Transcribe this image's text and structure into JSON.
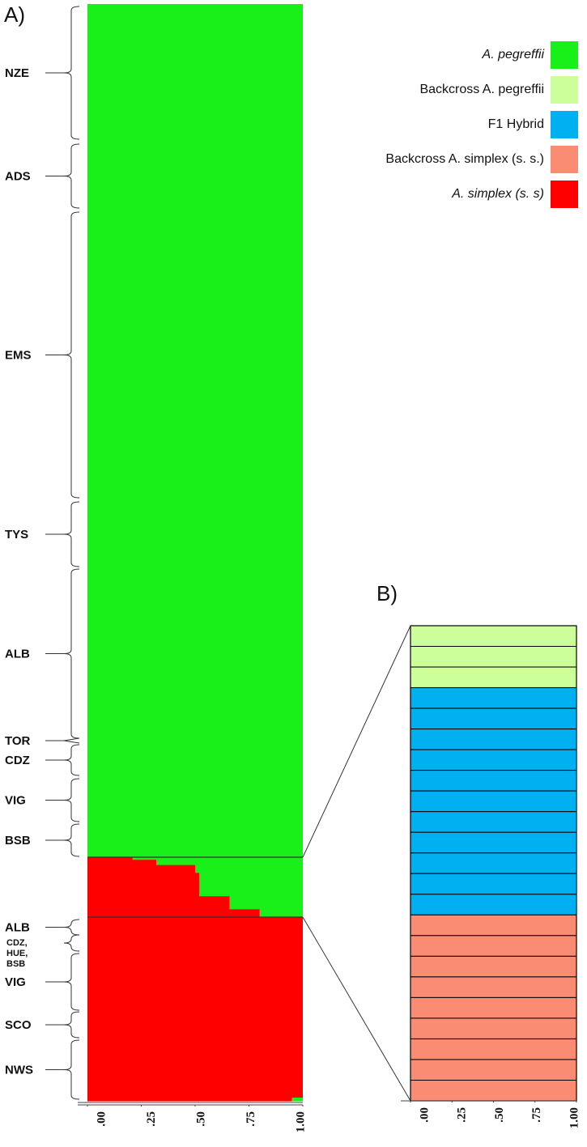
{
  "chart_data": [
    {
      "type": "bar",
      "orientation": "horizontal",
      "stacked": true,
      "panel": "A)",
      "categories": [
        null,
        null,
        null,
        null,
        null,
        null,
        null,
        null,
        null,
        null,
        null,
        null,
        null,
        null,
        null,
        null,
        null,
        null,
        null,
        null,
        null,
        null,
        null,
        null,
        null,
        null
      ],
      "series": [
        {
          "color": "#ff0000",
          "values": [
            0,
            0.21,
            0.32,
            0.32,
            0.5,
            0.5,
            0.5,
            0.52,
            0.52,
            0.52,
            0.52,
            0.52,
            0.52,
            0.52,
            0.52,
            0.52,
            0.66,
            0.66,
            0.66,
            0.66,
            0.66,
            0.8,
            0.8,
            0.8,
            1,
            0.95
          ]
        },
        {
          "color": "#19f01a",
          "values": [
            1,
            0.79,
            0.68,
            0.68,
            0.5,
            0.5,
            0.5,
            0.48,
            0.48,
            0.48,
            0.48,
            0.48,
            0.48,
            0.48,
            0.48,
            0.48,
            0.34,
            0.34,
            0.34,
            0.34,
            0.34,
            0.2,
            0.2,
            0.2,
            0,
            0.05
          ]
        }
      ],
      "groups": [
        "NZE",
        "ADS",
        "EMS",
        "TYS",
        "ALB",
        "TOR",
        "CDZ",
        "VIG",
        "BSB",
        "ALB",
        "CDZ, HUE, BSB",
        "VIG",
        "SCO",
        "NWS"
      ],
      "xlim": [
        0,
        1
      ],
      "xticks": [
        {
          "value": 0,
          "label": ".00"
        },
        {
          "value": 0.25,
          "label": ".25"
        },
        {
          "value": 0.5,
          "label": ".50"
        },
        {
          "value": 0.75,
          "label": ".75"
        },
        {
          "value": 1,
          "label": "1.00"
        }
      ]
    },
    {
      "type": "bar",
      "orientation": "horizontal",
      "stacked": true,
      "panel": "B)",
      "categories": [
        null,
        null,
        null,
        null,
        null,
        null,
        null,
        null,
        null,
        null,
        null,
        null,
        null,
        null,
        null,
        null,
        null,
        null,
        null,
        null,
        null,
        null,
        null
      ],
      "series": [
        {
          "name": "A. pegreffii",
          "color": "#19f01a",
          "values": [
            0,
            0,
            0,
            0,
            0,
            0,
            0,
            0,
            0,
            0,
            0,
            0,
            0,
            0,
            0,
            0,
            0,
            0,
            0,
            0,
            0,
            0,
            0
          ]
        },
        {
          "name": "Backcross A. pegreffii",
          "color": "#ccff99",
          "values": [
            1,
            1,
            1,
            0,
            0,
            0,
            0,
            0,
            0,
            0,
            0,
            0,
            0,
            0,
            0,
            0,
            0,
            0,
            0,
            0,
            0,
            0,
            0
          ]
        },
        {
          "name": "F1 Hybrid",
          "color": "#00b0f0",
          "values": [
            0,
            0,
            0,
            1,
            1,
            1,
            1,
            1,
            1,
            1,
            1,
            1,
            1,
            1,
            0,
            0,
            0,
            0,
            0,
            0,
            0,
            0,
            0
          ]
        },
        {
          "name": "Backcross A. simplex (s. s.)",
          "color": "#fa8c73",
          "values": [
            0,
            0,
            0,
            0,
            0,
            0,
            0,
            0,
            0,
            0,
            0,
            0,
            0,
            0,
            1,
            1,
            1,
            1,
            1,
            1,
            1,
            1,
            1
          ]
        },
        {
          "name": "A. simplex (s. s)",
          "color": "#ff0000",
          "values": [
            0,
            0,
            0,
            0,
            0,
            0,
            0,
            0,
            0,
            0,
            0,
            0,
            0,
            0,
            0,
            0,
            0,
            0,
            0,
            0,
            0,
            0,
            0
          ]
        }
      ],
      "xlim": [
        0,
        1
      ],
      "xticks": [
        {
          "value": 0,
          "label": ".00"
        },
        {
          "value": 0.25,
          "label": ".25"
        },
        {
          "value": 0.5,
          "label": ".50"
        },
        {
          "value": 0.75,
          "label": ".75"
        },
        {
          "value": 1,
          "label": "1.00"
        }
      ]
    }
  ]
}
